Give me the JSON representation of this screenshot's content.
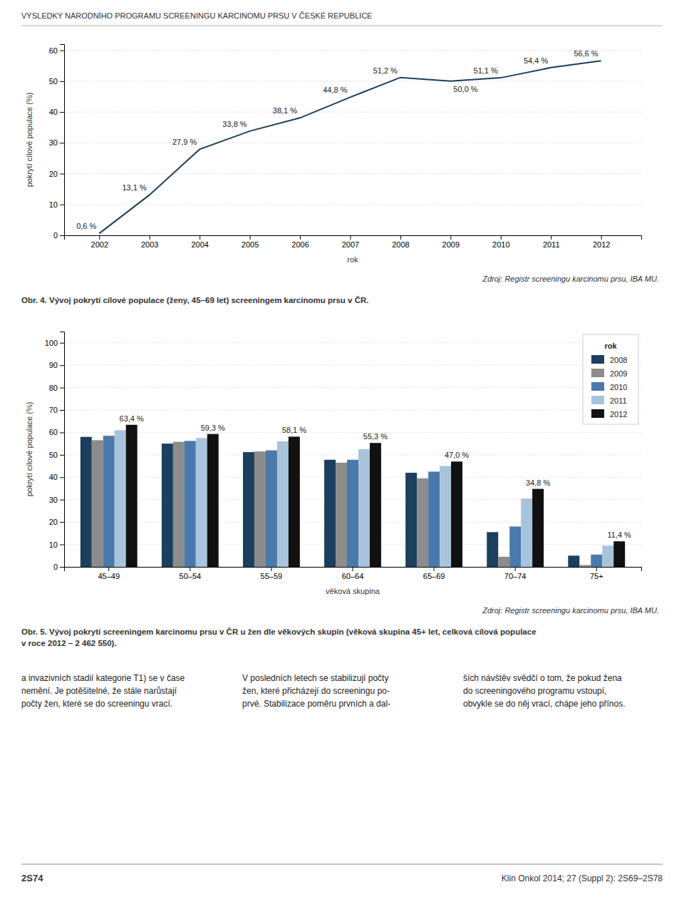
{
  "page_title": "VÝSLEDKY NÁRODNÍHO PROGRAMU SCREENINGU KARCINOMU PRSU V ČESKÉ REPUBLICE",
  "chart_data": [
    {
      "type": "line",
      "title": "Obr. 4. Vývoj pokrytí cílové populace (ženy, 45–69 let) screeningem karcinomu prsu v ČR.",
      "source": "Zdroj: Registr screeningu karcinomu prsu, IBA MU.",
      "xlabel": "rok",
      "ylabel": "pokrytí cílové populace (%)",
      "x": [
        2002,
        2003,
        2004,
        2005,
        2006,
        2007,
        2008,
        2009,
        2010,
        2011,
        2012
      ],
      "values": [
        0.6,
        13.1,
        27.9,
        33.8,
        38.1,
        44.8,
        51.2,
        50.0,
        51.1,
        54.4,
        56.6
      ],
      "value_labels": [
        "0,6 %",
        "13,1 %",
        "27,9 %",
        "33,8 %",
        "38,1 %",
        "44,8 %",
        "51,2 %",
        "50,0 %",
        "51,1 %",
        "54,4 %",
        "56,6 %"
      ],
      "data_labels": true,
      "color": "#1c3f5e",
      "xlim": [
        2001.3,
        2012.8
      ],
      "xticks": [
        2002,
        2003,
        2004,
        2005,
        2006,
        2007,
        2008,
        2009,
        2010,
        2011,
        2012
      ],
      "ylim": [
        0,
        62
      ],
      "yticks": [
        0,
        10,
        20,
        30,
        40,
        50,
        60
      ],
      "grid": true
    },
    {
      "type": "bar",
      "title": "Obr. 5. Vývoj pokrytí screeningem karcinomu prsu v ČR u žen dle věkových skupin (věková skupina 45+ let, celková cílová populace\nv roce 2012 – 2 462 550).",
      "source": "Zdroj: Registr screeningu karcinomu prsu, IBA MU.",
      "xlabel": "věková skupina",
      "ylabel": "pokrytí cílové populace (%)",
      "categories": [
        "45–49",
        "50–54",
        "55–59",
        "60–64",
        "65–69",
        "70–74",
        "75+"
      ],
      "series": [
        {
          "name": "2008",
          "color": "#1c3f5e",
          "values": [
            58.0,
            55.0,
            51.2,
            47.8,
            42.0,
            15.5,
            5.0
          ]
        },
        {
          "name": "2009",
          "color": "#8c8c8c",
          "values": [
            56.5,
            55.8,
            51.5,
            46.5,
            39.5,
            4.5,
            0.8
          ]
        },
        {
          "name": "2010",
          "color": "#4a7aab",
          "values": [
            58.5,
            56.2,
            52.0,
            47.8,
            42.5,
            18.0,
            5.5
          ]
        },
        {
          "name": "2011",
          "color": "#a8c4dc",
          "values": [
            61.0,
            57.5,
            56.0,
            52.5,
            45.0,
            30.5,
            9.5
          ]
        },
        {
          "name": "2012",
          "color": "#111111",
          "values": [
            63.4,
            59.3,
            58.1,
            55.3,
            47.0,
            34.8,
            11.4
          ],
          "data_labels": true,
          "value_labels": [
            "63,4 %",
            "59,3 %",
            "58,1 %",
            "55,3 %",
            "47,0 %",
            "34,8 %",
            "11,4 %"
          ]
        }
      ],
      "ylim": [
        0,
        105
      ],
      "yticks": [
        0,
        10,
        20,
        30,
        40,
        50,
        60,
        70,
        80,
        90,
        100
      ],
      "grid": true,
      "legend": "upper right",
      "legend_title": "rok"
    }
  ],
  "body_text": [
    "a invazivních stadií kategorie T1) se v čase\nnemění. Je potěšitelné, že stále narůstají\npočty žen, které se do screeningu vrací.",
    "V posledních letech se stabilizují počty\nžen, které přicházejí do screeningu po-\nprvé. Stabilizace poměru prvních a dal-",
    "ších návštěv svědčí o tom, že pokud žena\ndo screeningového programu vstoupí,\nobvykle se do něj vrací, chápe jeho přínos."
  ],
  "footer_left": "2S74",
  "footer_right": "Klin Onkol 2014; 27 (Suppl 2): 2S69–2S78"
}
